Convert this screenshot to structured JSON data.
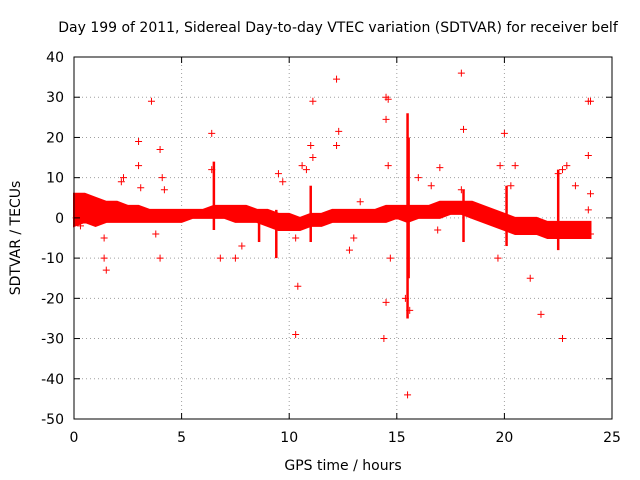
{
  "chart_data": {
    "type": "scatter",
    "title": "Day 199 of 2011, Sidereal Day-to-day VTEC variation (SDTVAR) for receiver belf",
    "xlabel": "GPS time / hours",
    "ylabel": "SDTVAR / TECUs",
    "xlim": [
      0,
      25
    ],
    "ylim": [
      -50,
      40
    ],
    "xticks": [
      0,
      5,
      10,
      15,
      20,
      25
    ],
    "yticks": [
      -50,
      -40,
      -30,
      -20,
      -10,
      0,
      10,
      20,
      30,
      40
    ],
    "grid": true,
    "marker": "+",
    "color": "#ff0000",
    "band": {
      "description": "dense per-epoch SDTVAR samples forming a continuous band",
      "x": [
        0.0,
        0.5,
        1.0,
        1.5,
        2.0,
        2.5,
        3.0,
        3.5,
        4.0,
        4.5,
        5.0,
        5.5,
        6.0,
        6.5,
        7.0,
        7.5,
        8.0,
        8.5,
        9.0,
        9.5,
        10.0,
        10.5,
        11.0,
        11.5,
        12.0,
        12.5,
        13.0,
        13.5,
        14.0,
        14.5,
        15.0,
        15.5,
        16.0,
        16.5,
        17.0,
        17.5,
        18.0,
        18.5,
        19.0,
        19.5,
        20.0,
        20.5,
        21.0,
        21.5,
        22.0,
        22.5,
        23.0,
        23.5,
        24.0
      ],
      "low": [
        -2,
        -1,
        -2,
        -1,
        -1,
        -1,
        -1,
        -1,
        -1,
        -1,
        -1,
        0,
        0,
        0,
        0,
        -1,
        -1,
        -1,
        -2,
        -3,
        -3,
        -3,
        -2,
        -2,
        -1,
        -1,
        -1,
        -1,
        -1,
        -1,
        0,
        -1,
        0,
        0,
        0,
        1,
        1,
        0,
        -1,
        -2,
        -3,
        -4,
        -4,
        -4,
        -5,
        -5,
        -5,
        -5,
        -5
      ],
      "high": [
        6,
        6,
        5,
        4,
        4,
        3,
        3,
        2,
        2,
        2,
        2,
        2,
        2,
        3,
        3,
        3,
        3,
        2,
        2,
        1,
        1,
        0,
        1,
        1,
        2,
        2,
        2,
        2,
        2,
        3,
        3,
        3,
        3,
        3,
        4,
        4,
        4,
        4,
        3,
        2,
        1,
        0,
        0,
        0,
        -1,
        -1,
        -1,
        -1,
        -1
      ]
    },
    "spikes": [
      {
        "x": 6.5,
        "min": -3,
        "max": 14
      },
      {
        "x": 8.6,
        "min": -6,
        "max": 2
      },
      {
        "x": 9.4,
        "min": -10,
        "max": 2
      },
      {
        "x": 11.0,
        "min": -6,
        "max": 8
      },
      {
        "x": 15.5,
        "min": -25,
        "max": 26
      },
      {
        "x": 15.55,
        "min": -15,
        "max": 20
      },
      {
        "x": 18.1,
        "min": -6,
        "max": 7
      },
      {
        "x": 20.1,
        "min": -7,
        "max": 8
      },
      {
        "x": 22.5,
        "min": -8,
        "max": 12
      }
    ],
    "outliers": [
      [
        0.1,
        0
      ],
      [
        0.3,
        -2
      ],
      [
        1.4,
        -5
      ],
      [
        1.4,
        -10
      ],
      [
        1.5,
        -13
      ],
      [
        2.2,
        9
      ],
      [
        2.3,
        10
      ],
      [
        3.0,
        19
      ],
      [
        3.0,
        13
      ],
      [
        3.1,
        7.5
      ],
      [
        3.6,
        29
      ],
      [
        4.0,
        17
      ],
      [
        4.1,
        10
      ],
      [
        3.8,
        -4
      ],
      [
        4.0,
        -10
      ],
      [
        4.2,
        7
      ],
      [
        6.4,
        21
      ],
      [
        6.4,
        12
      ],
      [
        6.8,
        -10
      ],
      [
        7.8,
        -7
      ],
      [
        7.5,
        -10
      ],
      [
        9.7,
        9
      ],
      [
        9.5,
        11
      ],
      [
        10.4,
        -17
      ],
      [
        10.3,
        -29
      ],
      [
        10.3,
        -5
      ],
      [
        10.6,
        13
      ],
      [
        11.1,
        29
      ],
      [
        11.0,
        18
      ],
      [
        11.1,
        15
      ],
      [
        10.8,
        12
      ],
      [
        12.2,
        34.5
      ],
      [
        12.3,
        21.5
      ],
      [
        12.2,
        18
      ],
      [
        13.0,
        -5
      ],
      [
        12.8,
        -8
      ],
      [
        13.3,
        4
      ],
      [
        14.5,
        30
      ],
      [
        14.6,
        29.5
      ],
      [
        14.5,
        24.5
      ],
      [
        14.6,
        13
      ],
      [
        14.4,
        -30
      ],
      [
        14.5,
        -21
      ],
      [
        14.7,
        -10
      ],
      [
        15.5,
        -44
      ],
      [
        15.4,
        -20
      ],
      [
        15.6,
        -23
      ],
      [
        16.0,
        10
      ],
      [
        16.6,
        8
      ],
      [
        17.0,
        12.5
      ],
      [
        16.9,
        -3
      ],
      [
        18.0,
        36
      ],
      [
        18.1,
        22
      ],
      [
        18.0,
        7
      ],
      [
        19.8,
        13
      ],
      [
        19.7,
        -10
      ],
      [
        20.0,
        21
      ],
      [
        20.5,
        13
      ],
      [
        20.3,
        8
      ],
      [
        21.2,
        -15
      ],
      [
        21.7,
        -24
      ],
      [
        22.5,
        11
      ],
      [
        22.7,
        12
      ],
      [
        22.7,
        -30
      ],
      [
        22.9,
        13
      ],
      [
        23.3,
        8
      ],
      [
        23.9,
        29
      ],
      [
        24.0,
        29
      ],
      [
        23.9,
        15.5
      ],
      [
        24.0,
        6
      ],
      [
        23.9,
        2
      ],
      [
        24.0,
        -4
      ]
    ]
  }
}
